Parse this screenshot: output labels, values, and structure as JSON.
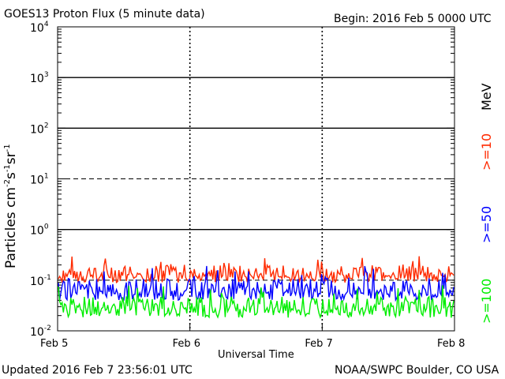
{
  "header": {
    "title": "GOES13 Proton Flux (5 minute data)",
    "begin": "Begin: 2016 Feb 5 0000 UTC"
  },
  "footer": {
    "updated": "Updated 2016 Feb  7 23:56:01 UTC",
    "credit": "NOAA/SWPC Boulder, CO USA"
  },
  "chart_data": {
    "type": "line",
    "title": "GOES13 Proton Flux (5 minute data)",
    "xlabel": "Universal Time",
    "ylabel": "Particles cm-2s-1sr-1",
    "yscale": "log",
    "ylim": [
      0.01,
      10000
    ],
    "xlim": [
      0,
      3
    ],
    "x_ticks": [
      "Feb 5",
      "Feb 6",
      "Feb 7",
      "Feb 8"
    ],
    "y_ticks": [
      {
        "base": "10",
        "exp": "4"
      },
      {
        "base": "10",
        "exp": "3"
      },
      {
        "base": "10",
        "exp": "2"
      },
      {
        "base": "10",
        "exp": "1"
      },
      {
        "base": "10",
        "exp": "0"
      },
      {
        "base": "10",
        "exp": "-1"
      },
      {
        "base": "10",
        "exp": "-2"
      }
    ],
    "unit_label": "MeV",
    "series": [
      {
        "name": ">=10",
        "color": "#ff2a00",
        "min": 0.09,
        "max": 0.3,
        "typical": 0.13
      },
      {
        "name": ">=50",
        "color": "#0000ff",
        "min": 0.04,
        "max": 0.2,
        "typical": 0.06
      },
      {
        "name": ">=100",
        "color": "#00ee00",
        "min": 0.018,
        "max": 0.08,
        "typical": 0.028
      }
    ],
    "thresholds": [
      {
        "value": 1000,
        "style": "solid"
      },
      {
        "value": 100,
        "style": "solid"
      },
      {
        "value": 10,
        "style": "dashed"
      },
      {
        "value": 1,
        "style": "solid"
      },
      {
        "value": 0.1,
        "style": "dashed"
      }
    ]
  }
}
